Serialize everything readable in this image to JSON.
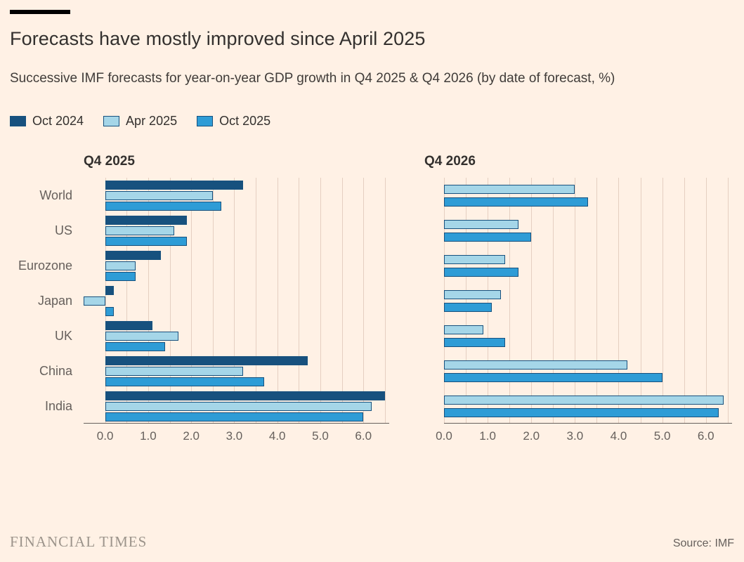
{
  "header": {
    "title": "Forecasts have mostly improved since April 2025",
    "subtitle": "Successive IMF forecasts for year-on-year GDP growth in Q4 2025 & Q4 2026 (by date of forecast, %)"
  },
  "legend": [
    {
      "label": "Oct 2024",
      "color": "#17517E"
    },
    {
      "label": "Apr 2025",
      "color": "#A5D6E8"
    },
    {
      "label": "Oct 2025",
      "color": "#2E9CD6"
    }
  ],
  "colors": {
    "background": "#FFF1E5",
    "bar_border": "#17517E",
    "gridline": "#E5CFC1",
    "axis_line": "#66605C",
    "text_dark": "#33302E",
    "text_muted": "#66605C"
  },
  "chart_data": [
    {
      "type": "bar",
      "orientation": "horizontal",
      "title": "Q4 2025",
      "categories": [
        "World",
        "US",
        "Eurozone",
        "Japan",
        "UK",
        "China",
        "India"
      ],
      "series": [
        {
          "name": "Oct 2024",
          "values": [
            3.2,
            1.9,
            1.3,
            0.2,
            1.1,
            4.7,
            6.5
          ]
        },
        {
          "name": "Apr 2025",
          "values": [
            2.5,
            1.6,
            0.7,
            -0.5,
            1.7,
            3.2,
            6.2
          ]
        },
        {
          "name": "Oct 2025",
          "values": [
            2.7,
            1.9,
            0.7,
            0.2,
            1.4,
            3.7,
            6.0
          ]
        }
      ],
      "xlim": [
        -0.5,
        6.6
      ],
      "xticks": [
        0,
        1,
        2,
        3,
        4,
        5,
        6
      ],
      "gridline_step": 0.5,
      "grid": "on",
      "legend_position": "top"
    },
    {
      "type": "bar",
      "orientation": "horizontal",
      "title": "Q4 2026",
      "categories": [
        "World",
        "US",
        "Eurozone",
        "Japan",
        "UK",
        "China",
        "India"
      ],
      "series": [
        {
          "name": "Apr 2025",
          "values": [
            3.0,
            1.7,
            1.4,
            1.3,
            0.9,
            4.2,
            6.4
          ]
        },
        {
          "name": "Oct 2025",
          "values": [
            3.3,
            2.0,
            1.7,
            1.1,
            1.4,
            5.0,
            6.3
          ]
        }
      ],
      "xlim": [
        0,
        6.6
      ],
      "xticks": [
        0,
        1,
        2,
        3,
        4,
        5,
        6
      ],
      "gridline_step": 0.5,
      "grid": "on",
      "legend_position": "top"
    }
  ],
  "footer": {
    "brand": "FINANCIAL TIMES",
    "source": "Source: IMF"
  }
}
